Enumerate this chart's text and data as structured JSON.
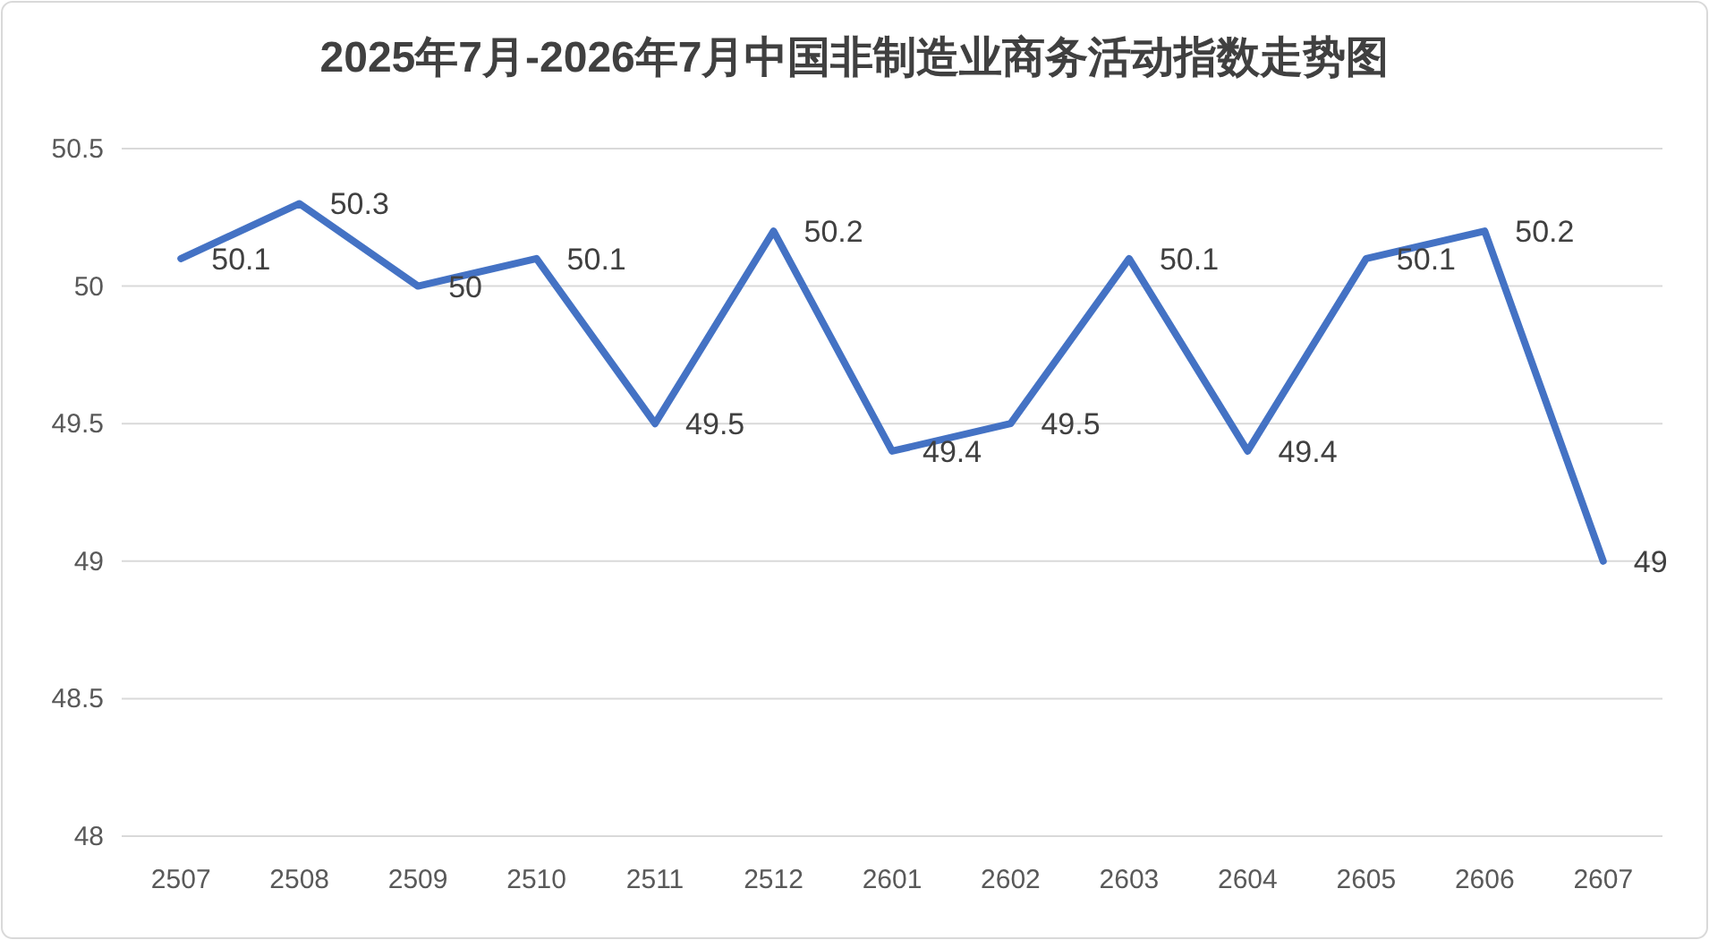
{
  "chart_data": {
    "type": "line",
    "title": "2025年7月-2026年7月中国非制造业商务活动指数走势图",
    "categories": [
      "2507",
      "2508",
      "2509",
      "2510",
      "2511",
      "2512",
      "2601",
      "2602",
      "2603",
      "2604",
      "2605",
      "2606",
      "2607"
    ],
    "series": [
      {
        "color": "#4472c4",
        "values": [
          50.1,
          50.3,
          50,
          50.1,
          49.5,
          50.2,
          49.4,
          49.5,
          50.1,
          49.4,
          50.1,
          50.2,
          49
        ]
      }
    ],
    "ylim": [
      48,
      50.5
    ],
    "yticks": [
      48,
      48.5,
      49,
      49.5,
      50,
      50.5
    ],
    "grid": "y",
    "data_labels": true,
    "marker": "none",
    "line_style": "solid"
  }
}
